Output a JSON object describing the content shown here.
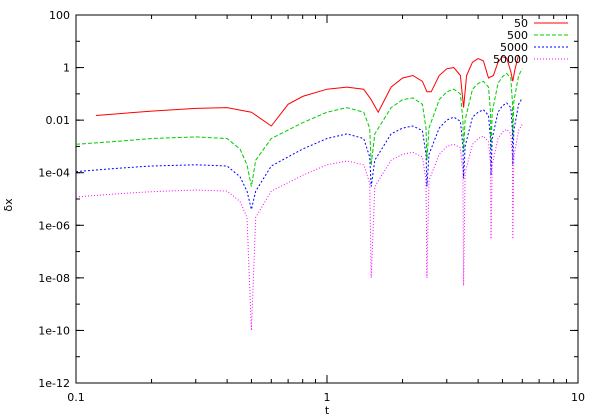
{
  "chart_data": {
    "type": "line",
    "xlabel": "t",
    "ylabel": "δx",
    "xscale": "log",
    "yscale": "log",
    "xlim": [
      0.1,
      10
    ],
    "ylim": [
      1e-12,
      100
    ],
    "grid": false,
    "legend_position": "top-right",
    "x_ticks": [
      {
        "value": 0.1,
        "label": "0.1"
      },
      {
        "value": 1,
        "label": "1"
      },
      {
        "value": 10,
        "label": "10"
      }
    ],
    "y_ticks": [
      {
        "value": 1e-12,
        "label": "1e-12"
      },
      {
        "value": 1e-10,
        "label": "1e-10"
      },
      {
        "value": 1e-08,
        "label": "1e-08"
      },
      {
        "value": 1e-06,
        "label": "1e-06"
      },
      {
        "value": 0.0001,
        "label": "1e-04"
      },
      {
        "value": 0.01,
        "label": "0.01"
      },
      {
        "value": 1,
        "label": "1"
      },
      {
        "value": 100,
        "label": "100"
      }
    ],
    "series": [
      {
        "name": "50",
        "color": "#ff0000",
        "dash": "solid",
        "x": [
          0.12,
          0.2,
          0.3,
          0.4,
          0.5,
          0.6,
          0.7,
          0.8,
          1.0,
          1.2,
          1.4,
          1.5,
          1.6,
          1.8,
          2.0,
          2.2,
          2.4,
          2.5,
          2.6,
          2.8,
          3.0,
          3.2,
          3.4,
          3.5,
          3.6,
          3.8,
          4.0,
          4.2,
          4.4,
          4.6,
          4.8,
          5.0,
          5.2,
          5.4,
          5.5,
          5.6,
          5.8
        ],
        "y": [
          0.015,
          0.022,
          0.028,
          0.03,
          0.02,
          0.006,
          0.04,
          0.08,
          0.15,
          0.18,
          0.15,
          0.06,
          0.02,
          0.18,
          0.4,
          0.5,
          0.3,
          0.12,
          0.12,
          0.5,
          0.9,
          1.0,
          0.5,
          0.03,
          0.5,
          1.6,
          2.2,
          1.8,
          0.4,
          0.5,
          1.6,
          2.6,
          2.3,
          0.7,
          0.3,
          0.8,
          3.0
        ]
      },
      {
        "name": "500",
        "color": "#00cc00",
        "dash": "4,2",
        "x": [
          0.1,
          0.15,
          0.2,
          0.3,
          0.4,
          0.45,
          0.48,
          0.5,
          0.52,
          0.6,
          0.8,
          1.0,
          1.2,
          1.4,
          1.48,
          1.5,
          1.55,
          1.8,
          2.0,
          2.2,
          2.4,
          2.48,
          2.5,
          2.55,
          2.8,
          3.0,
          3.2,
          3.4,
          3.48,
          3.5,
          3.55,
          3.8,
          4.0,
          4.2,
          4.4,
          4.48,
          4.5,
          4.55,
          4.8,
          5.0,
          5.2,
          5.4,
          5.48,
          5.5,
          5.55,
          5.8,
          6.0
        ],
        "y": [
          0.0012,
          0.0016,
          0.002,
          0.0023,
          0.002,
          0.0008,
          0.0002,
          3e-05,
          0.0003,
          0.002,
          0.008,
          0.02,
          0.03,
          0.02,
          0.005,
          0.0002,
          0.003,
          0.03,
          0.06,
          0.07,
          0.04,
          0.005,
          0.0003,
          0.005,
          0.06,
          0.12,
          0.15,
          0.1,
          0.01,
          0.0006,
          0.01,
          0.15,
          0.25,
          0.3,
          0.18,
          0.02,
          0.0008,
          0.02,
          0.25,
          0.45,
          0.6,
          0.4,
          0.05,
          0.002,
          0.05,
          0.5,
          0.9
        ]
      },
      {
        "name": "5000",
        "color": "#0000ff",
        "dash": "2,2",
        "x": [
          0.1,
          0.15,
          0.2,
          0.3,
          0.4,
          0.45,
          0.48,
          0.5,
          0.52,
          0.6,
          0.8,
          1.0,
          1.2,
          1.4,
          1.48,
          1.5,
          1.55,
          1.8,
          2.0,
          2.2,
          2.4,
          2.48,
          2.5,
          2.55,
          2.8,
          3.0,
          3.2,
          3.4,
          3.48,
          3.5,
          3.55,
          3.8,
          4.0,
          4.2,
          4.4,
          4.48,
          4.5,
          4.55,
          4.8,
          5.0,
          5.2,
          5.4,
          5.48,
          5.5,
          5.55,
          5.8,
          6.0
        ],
        "y": [
          0.00011,
          0.00015,
          0.00018,
          0.0002,
          0.00018,
          7e-05,
          2e-05,
          4e-06,
          2e-05,
          0.00018,
          0.0008,
          0.002,
          0.003,
          0.002,
          0.0004,
          3e-05,
          0.0003,
          0.003,
          0.005,
          0.006,
          0.004,
          0.0005,
          3e-05,
          0.0005,
          0.005,
          0.01,
          0.013,
          0.009,
          0.001,
          6e-05,
          0.001,
          0.013,
          0.02,
          0.025,
          0.015,
          0.002,
          8e-05,
          0.002,
          0.02,
          0.035,
          0.045,
          0.03,
          0.004,
          0.0002,
          0.004,
          0.04,
          0.07
        ]
      },
      {
        "name": "50000",
        "color": "#ff00ff",
        "dash": "1,2",
        "x": [
          0.1,
          0.15,
          0.2,
          0.3,
          0.4,
          0.45,
          0.48,
          0.5,
          0.52,
          0.6,
          0.8,
          1.0,
          1.2,
          1.4,
          1.48,
          1.5,
          1.55,
          1.8,
          2.0,
          2.2,
          2.4,
          2.48,
          2.5,
          2.55,
          2.8,
          3.0,
          3.2,
          3.4,
          3.48,
          3.5,
          3.55,
          3.8,
          4.0,
          4.2,
          4.4,
          4.48,
          4.5,
          4.55,
          4.8,
          5.0,
          5.2,
          5.4,
          5.48,
          5.5,
          5.55,
          5.8,
          6.0
        ],
        "y": [
          1.2e-05,
          1.6e-05,
          1.9e-05,
          2.2e-05,
          2e-05,
          8e-06,
          2e-06,
          1e-10,
          2e-06,
          2e-05,
          8e-05,
          0.0002,
          0.00028,
          0.0002,
          4e-05,
          1e-08,
          3e-05,
          0.0003,
          0.0005,
          0.0006,
          0.0004,
          5e-05,
          1e-08,
          5e-05,
          0.0005,
          0.001,
          0.0012,
          0.0009,
          0.0001,
          5e-09,
          0.0001,
          0.0012,
          0.002,
          0.0025,
          0.0015,
          0.0002,
          3e-07,
          0.0002,
          0.002,
          0.0035,
          0.0045,
          0.003,
          0.0004,
          3e-07,
          0.0004,
          0.004,
          0.007
        ]
      }
    ]
  }
}
